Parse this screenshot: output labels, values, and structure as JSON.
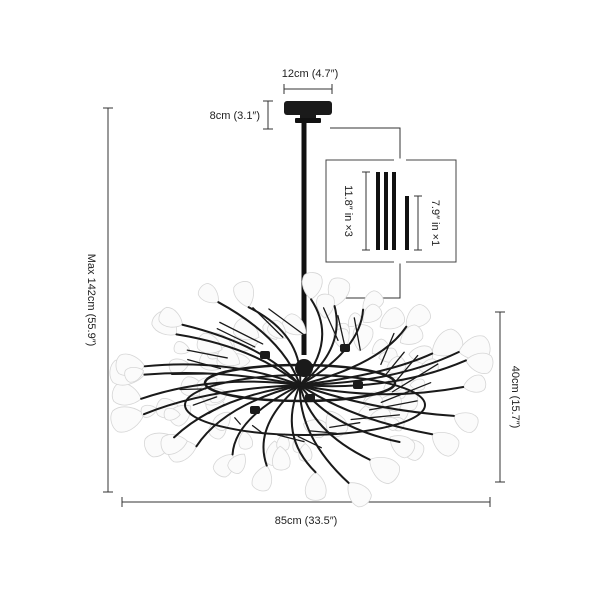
{
  "dimensions": {
    "canopy_width": "12cm (4.7″)",
    "canopy_height": "8cm (3.1″)",
    "max_height": "Max 142cm (55.9″)",
    "body_height": "40cm (15.7″)",
    "body_width": "85cm (33.5″)"
  },
  "rods_inset": {
    "long_rods_label": "11.8″ in ×3",
    "short_rod_label": "7.9″ in ×1"
  },
  "colors": {
    "metal": "#1a1a1a",
    "leaf": "#fbfbfb",
    "dimension": "#333333"
  }
}
